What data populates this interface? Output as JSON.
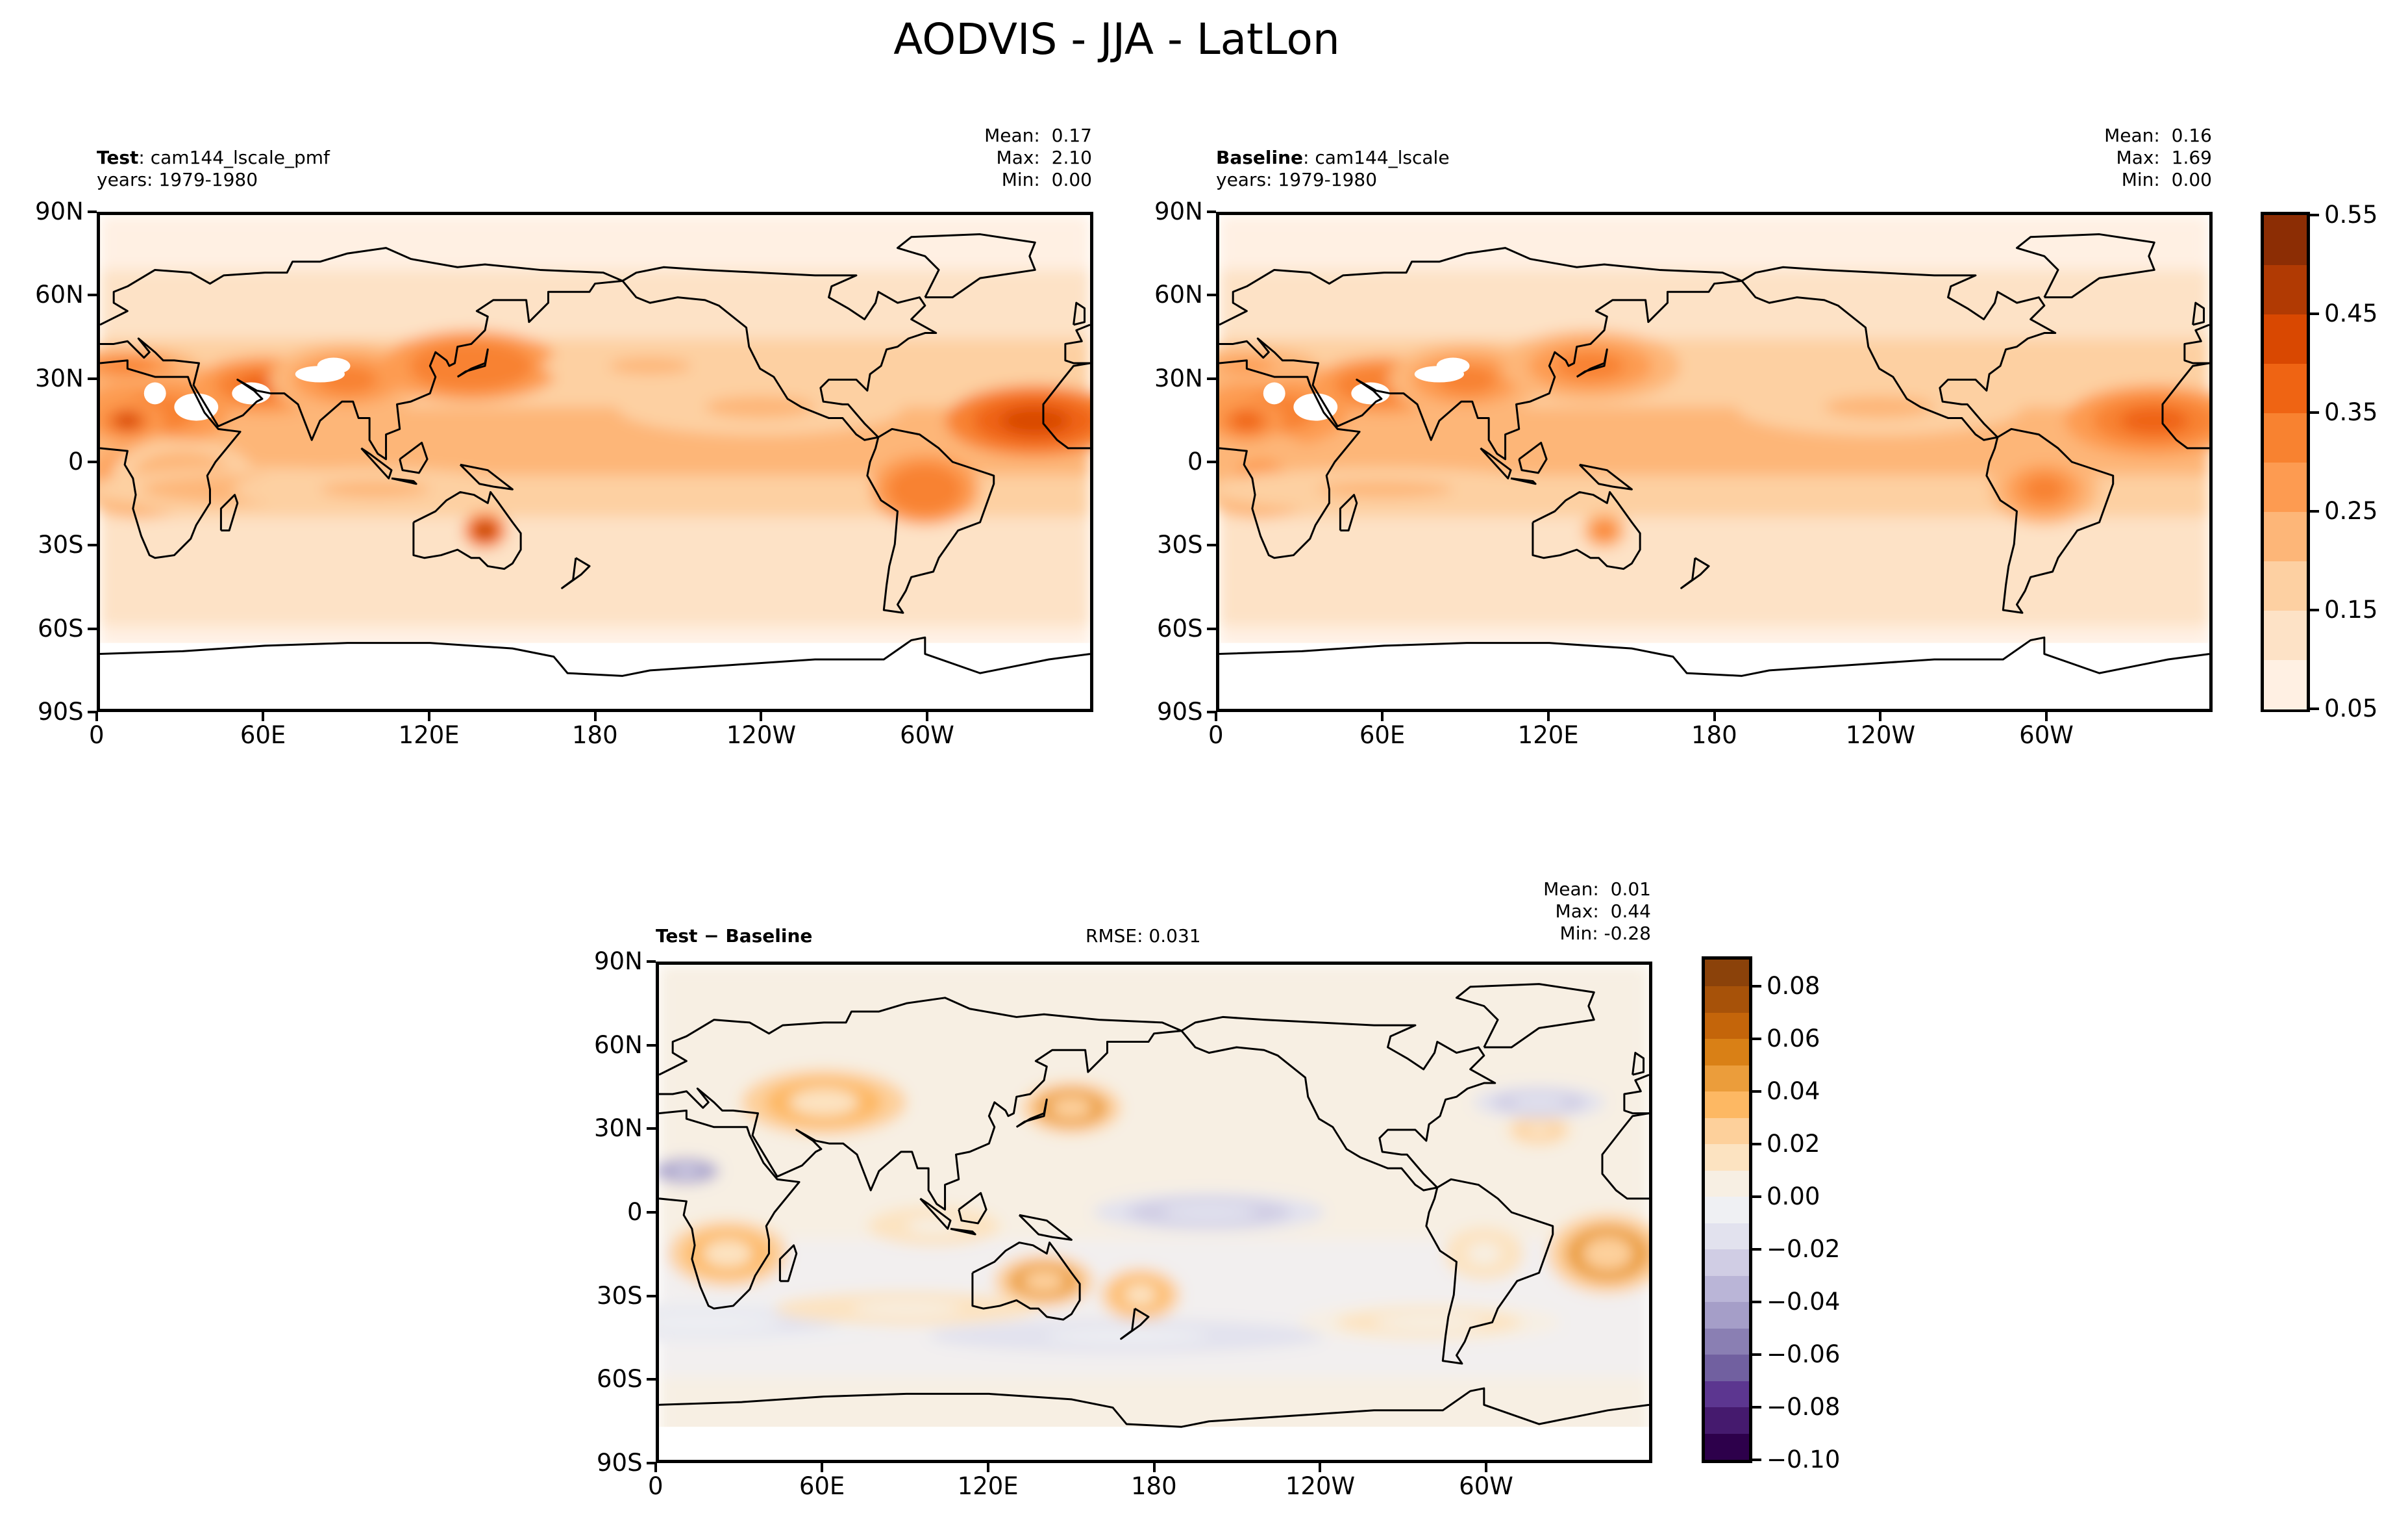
{
  "title": "AODVIS - JJA - LatLon",
  "panels": [
    {
      "id": "test",
      "label_bold": "Test",
      "label_rest": ": cam144_lscale_pmf",
      "years": "years: 1979-1980",
      "mean": "Mean:  0.17",
      "max": "Max:  2.10",
      "min": "Min:  0.00"
    },
    {
      "id": "baseline",
      "label_bold": "Baseline",
      "label_rest": ": cam144_lscale",
      "years": "years: 1979-1980",
      "mean": "Mean:  0.16",
      "max": "Max:  1.69",
      "min": "Min:  0.00"
    },
    {
      "id": "diff",
      "label_bold": "Test − Baseline",
      "label_rest": "",
      "rmse": "RMSE: 0.031",
      "mean": "Mean:  0.01",
      "max": "Max:  0.44",
      "min": "Min: -0.28"
    }
  ],
  "chart_data": {
    "type": "heatmap",
    "projection": "PlateCarree lat-lon",
    "xticks": [
      {
        "lon": 0,
        "label": "0"
      },
      {
        "lon": 60,
        "label": "60E"
      },
      {
        "lon": 120,
        "label": "120E"
      },
      {
        "lon": 180,
        "label": "180"
      },
      {
        "lon": 240,
        "label": "120W"
      },
      {
        "lon": 300,
        "label": "60W"
      }
    ],
    "yticks": [
      {
        "lat": 90,
        "label": "90N"
      },
      {
        "lat": 60,
        "label": "60N"
      },
      {
        "lat": 30,
        "label": "30N"
      },
      {
        "lat": 0,
        "label": "0"
      },
      {
        "lat": -30,
        "label": "30S"
      },
      {
        "lat": -60,
        "label": "60S"
      },
      {
        "lat": -90,
        "label": "90S"
      }
    ],
    "cbar_main": {
      "min": 0.05,
      "max": 0.55,
      "ticks": [
        "0.05",
        "0.15",
        "0.25",
        "0.35",
        "0.45",
        "0.55"
      ],
      "colors": [
        "#fff0e3",
        "#fde2c6",
        "#fdd0a2",
        "#fdb678",
        "#fd9b51",
        "#f88230",
        "#ef6413",
        "#d94801",
        "#b13a03",
        "#8c2d04"
      ]
    },
    "cbar_diff": {
      "min": -0.1,
      "max": 0.09,
      "ticks": [
        {
          "v": 0.08,
          "label": "0.08"
        },
        {
          "v": 0.06,
          "label": "0.06"
        },
        {
          "v": 0.04,
          "label": "0.04"
        },
        {
          "v": 0.02,
          "label": "0.02"
        },
        {
          "v": 0.0,
          "label": "0.00"
        },
        {
          "v": -0.02,
          "label": "−0.02"
        },
        {
          "v": -0.04,
          "label": "−0.04"
        },
        {
          "v": -0.06,
          "label": "−0.06"
        },
        {
          "v": -0.08,
          "label": "−0.08"
        },
        {
          "v": -0.1,
          "label": "−0.10"
        }
      ],
      "colors": [
        "#2d004b",
        "#451a6e",
        "#5c3690",
        "#7160a0",
        "#8a7fb3",
        "#a59ec8",
        "#bab5d7",
        "#d0cde4",
        "#e2e2ee",
        "#eff0f3",
        "#f7efe3",
        "#fce3c1",
        "#fdd09b",
        "#fdb863",
        "#eb9d3b",
        "#d98016",
        "#c4650a",
        "#a75209",
        "#8b420a"
      ]
    },
    "bands_test": [
      [
        90,
        70,
        0.05
      ],
      [
        70,
        45,
        0.11
      ],
      [
        45,
        20,
        0.17
      ],
      [
        20,
        -5,
        0.2
      ],
      [
        -5,
        -20,
        0.17
      ],
      [
        -20,
        -45,
        0.13
      ],
      [
        -45,
        -60,
        0.11
      ],
      [
        -60,
        -68,
        0.07
      ],
      [
        -68,
        -90,
        -1
      ]
    ],
    "blobs_test": [
      [
        20,
        18,
        30,
        14,
        0.33
      ],
      [
        60,
        28,
        20,
        8,
        0.38
      ],
      [
        90,
        30,
        22,
        10,
        0.33
      ],
      [
        135,
        35,
        25,
        10,
        0.35
      ],
      [
        340,
        15,
        25,
        10,
        0.42
      ],
      [
        15,
        -5,
        18,
        12,
        0.3
      ],
      [
        300,
        -10,
        15,
        10,
        0.35
      ],
      [
        30,
        -5,
        20,
        10,
        0.22
      ],
      [
        240,
        20,
        40,
        8,
        0.2
      ],
      [
        140,
        -25,
        6,
        5,
        0.45
      ],
      [
        10,
        15,
        10,
        6,
        0.4
      ],
      [
        60,
        -10,
        50,
        6,
        0.22
      ],
      [
        100,
        -10,
        40,
        6,
        0.2
      ],
      [
        10,
        35,
        20,
        5,
        0.3
      ],
      [
        200,
        35,
        30,
        6,
        0.2
      ]
    ],
    "blobs_baseline": [
      [
        20,
        18,
        30,
        14,
        0.3
      ],
      [
        60,
        28,
        20,
        8,
        0.35
      ],
      [
        90,
        30,
        22,
        10,
        0.3
      ],
      [
        135,
        35,
        25,
        10,
        0.32
      ],
      [
        340,
        15,
        25,
        10,
        0.38
      ],
      [
        15,
        -5,
        18,
        12,
        0.27
      ],
      [
        300,
        -10,
        15,
        10,
        0.32
      ],
      [
        240,
        20,
        40,
        8,
        0.2
      ],
      [
        140,
        -25,
        6,
        5,
        0.3
      ],
      [
        10,
        15,
        10,
        6,
        0.36
      ],
      [
        60,
        -10,
        50,
        6,
        0.2
      ],
      [
        10,
        35,
        20,
        5,
        0.28
      ]
    ],
    "holes": [
      [
        35,
        20,
        8,
        5
      ],
      [
        55,
        25,
        7,
        4
      ],
      [
        80,
        32,
        9,
        3
      ],
      [
        85,
        35,
        6,
        3
      ],
      [
        20,
        25,
        4,
        4
      ]
    ],
    "blobs_diff": [
      [
        25,
        -15,
        18,
        10,
        0.06
      ],
      [
        140,
        -25,
        15,
        8,
        0.07
      ],
      [
        175,
        -30,
        12,
        8,
        0.06
      ],
      [
        345,
        -15,
        18,
        12,
        0.07
      ],
      [
        60,
        40,
        25,
        10,
        0.05
      ],
      [
        150,
        38,
        15,
        8,
        0.07
      ],
      [
        320,
        30,
        10,
        5,
        0.04
      ],
      [
        300,
        -15,
        12,
        8,
        0.03
      ],
      [
        100,
        -5,
        20,
        6,
        0.03
      ],
      [
        200,
        0,
        35,
        6,
        -0.04
      ],
      [
        15,
        -40,
        60,
        6,
        -0.02
      ],
      [
        170,
        -45,
        60,
        5,
        -0.03
      ],
      [
        10,
        15,
        10,
        4,
        -0.08
      ],
      [
        320,
        40,
        20,
        5,
        -0.04
      ],
      [
        280,
        -40,
        40,
        6,
        0.02
      ],
      [
        90,
        -35,
        40,
        5,
        0.03
      ]
    ]
  }
}
